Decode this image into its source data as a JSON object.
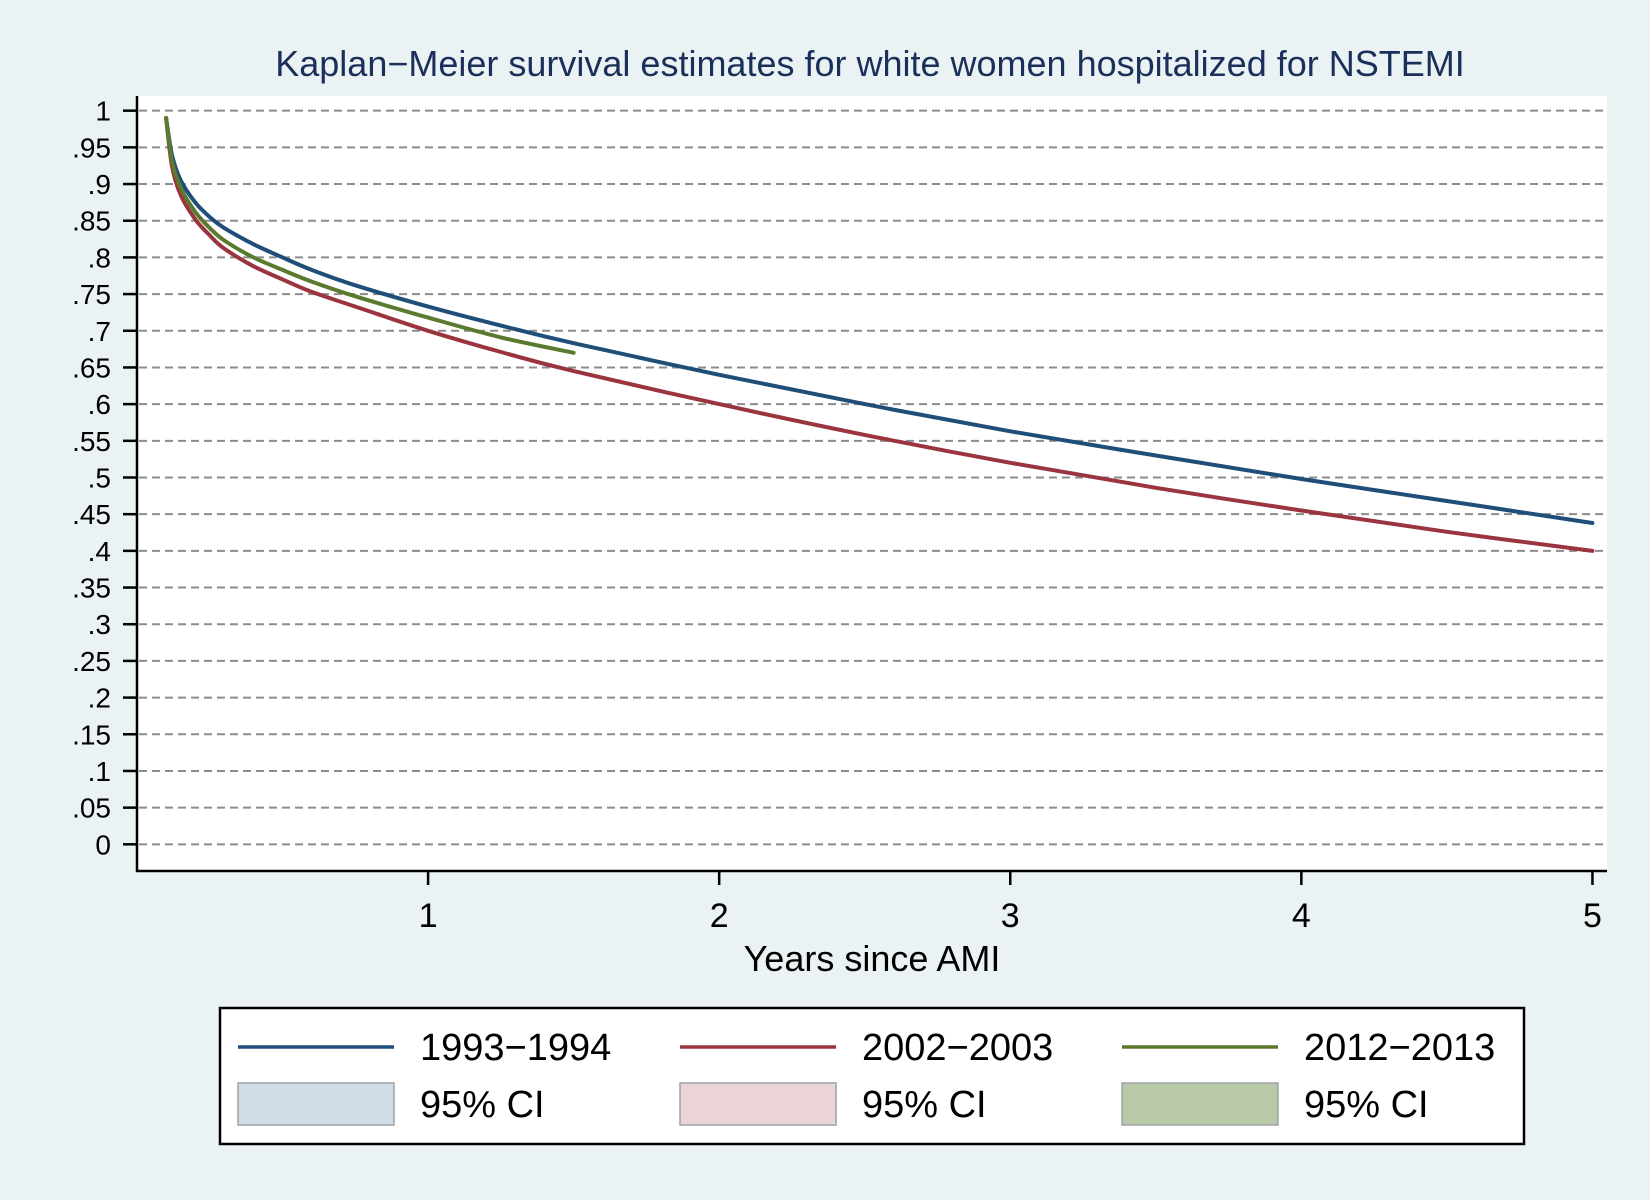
{
  "chart_data": {
    "type": "line",
    "title": "Kaplan−Meier survival estimates for white women hospitalized for NSTEMI",
    "xlabel": "Years since AMI",
    "ylabel": "",
    "xlim": [
      0,
      5.05
    ],
    "ylim": [
      -0.035,
      1.02
    ],
    "x_ticks": [
      1,
      2,
      3,
      4,
      5
    ],
    "x_tick_labels": [
      "1",
      "2",
      "3",
      "4",
      "5"
    ],
    "y_ticks": [
      0,
      0.05,
      0.1,
      0.15,
      0.2,
      0.25,
      0.3,
      0.35,
      0.4,
      0.45,
      0.5,
      0.55,
      0.6,
      0.65,
      0.7,
      0.75,
      0.8,
      0.85,
      0.9,
      0.95,
      1
    ],
    "y_tick_labels": [
      "0",
      ".05",
      ".1",
      ".15",
      ".2",
      ".25",
      ".3",
      ".35",
      ".4",
      ".45",
      ".5",
      ".55",
      ".6",
      ".65",
      ".7",
      ".75",
      ".8",
      ".85",
      ".9",
      ".95",
      "1"
    ],
    "grid": "horizontal dashed",
    "legend_position": "bottom",
    "series": [
      {
        "name": "1993−1994",
        "color": "#1f4e79",
        "ci_label": "95% CI",
        "ci_color": "#d1dce6",
        "x": [
          0.1,
          0.12,
          0.15,
          0.2,
          0.25,
          0.3,
          0.4,
          0.5,
          0.6,
          0.75,
          1.0,
          1.25,
          1.5,
          2.0,
          2.5,
          3.0,
          3.5,
          4.0,
          4.5,
          5.0
        ],
        "y": [
          0.99,
          0.94,
          0.905,
          0.875,
          0.855,
          0.84,
          0.818,
          0.8,
          0.783,
          0.762,
          0.733,
          0.707,
          0.683,
          0.64,
          0.6,
          0.563,
          0.53,
          0.498,
          0.468,
          0.438
        ]
      },
      {
        "name": "2002−2003",
        "color": "#9a3540",
        "ci_label": "95% CI",
        "ci_color": "#ebd4d6",
        "x": [
          0.1,
          0.12,
          0.15,
          0.2,
          0.25,
          0.3,
          0.4,
          0.5,
          0.6,
          0.75,
          1.0,
          1.25,
          1.5,
          2.0,
          2.5,
          3.0,
          3.5,
          4.0,
          4.5,
          5.0
        ],
        "y": [
          0.99,
          0.925,
          0.885,
          0.852,
          0.83,
          0.812,
          0.788,
          0.77,
          0.753,
          0.733,
          0.7,
          0.671,
          0.645,
          0.6,
          0.558,
          0.52,
          0.486,
          0.455,
          0.426,
          0.4
        ]
      },
      {
        "name": "2012−2013",
        "color": "#5a7a2e",
        "ci_label": "95% CI",
        "ci_color": "#b9c8a6",
        "x": [
          0.1,
          0.12,
          0.15,
          0.2,
          0.25,
          0.3,
          0.4,
          0.5,
          0.6,
          0.75,
          1.0,
          1.25,
          1.5
        ],
        "y": [
          0.99,
          0.932,
          0.895,
          0.862,
          0.84,
          0.823,
          0.8,
          0.783,
          0.767,
          0.747,
          0.718,
          0.691,
          0.67
        ]
      }
    ]
  }
}
